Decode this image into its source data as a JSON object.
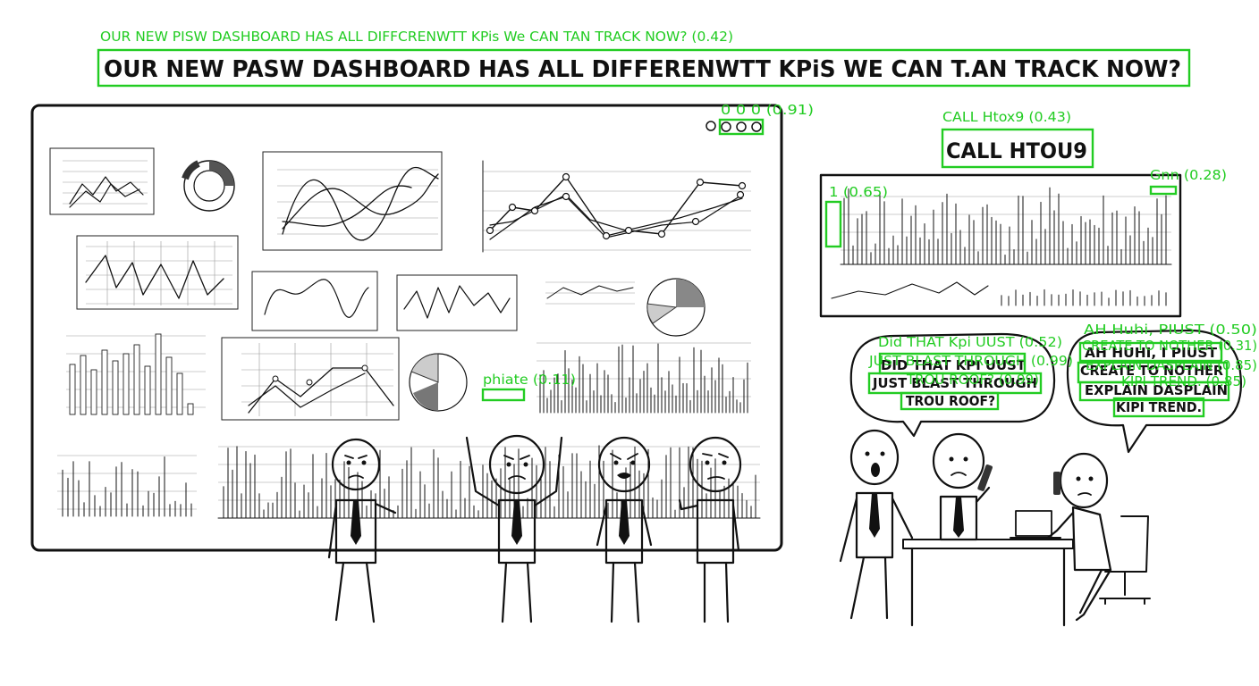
{
  "headline": {
    "text": "OUR NEW PASW DASHBOARD HAS ALL DIFFERENWTT KPiS WE CAN T.AN TRACK NOW?",
    "detection_label": "OUR NEW PISW DASHBOARD HAS ALL DIFFCRENWTT KPis We CAN TAN TRACK NOW? (0.42)"
  },
  "board_dots": {
    "text": "O O O",
    "detection_label": "0 0 0 (0.91)"
  },
  "call_text": {
    "text": "CALL HTOU9",
    "detection_label": "CALL Htox9 (0.43)"
  },
  "side_chart_tag": {
    "detection_label": "Gnn (0.28)"
  },
  "side_axis_tag": {
    "detection_label": "1 (0.65)"
  },
  "legend_tag": {
    "detection_label": "phiate (0.11)"
  },
  "bubble_left": {
    "lines": [
      "DID THAT KPI UUST",
      "JUST BLAST THROUGH",
      "TROU ROOF?"
    ],
    "detection_labels": [
      "Did THAT Kpi UUST (0.52)",
      "JUST BLAST THROUGH (0.99)",
      "TROU ROOF? (0.99)"
    ]
  },
  "bubble_right": {
    "lines": [
      "AH HUHI, I PIUST",
      "CREATE TO NOTHER",
      "EXPLAIN DASPLAIN",
      "KIPI TREND."
    ],
    "detection_labels": [
      "AH Huhi, PIUST (0.50)",
      "CREATE TO NOTHER (0.31)",
      "EXPLAIN DASPLAIN (0.85)",
      "KIPI TREND. (0.85)"
    ]
  },
  "colors": {
    "detection": "#22cc22",
    "ink": "#111111",
    "paper": "#ffffff"
  },
  "characters": [
    {
      "name": "analyst-one",
      "expression": "frowning"
    },
    {
      "name": "analyst-two",
      "expression": "hands-on-head"
    },
    {
      "name": "analyst-three",
      "expression": "angry"
    },
    {
      "name": "analyst-four",
      "expression": "puzzled"
    },
    {
      "name": "analyst-five",
      "expression": "shocked"
    },
    {
      "name": "analyst-six",
      "expression": "on-phone"
    },
    {
      "name": "analyst-seven",
      "expression": "on-phone-seated"
    }
  ]
}
